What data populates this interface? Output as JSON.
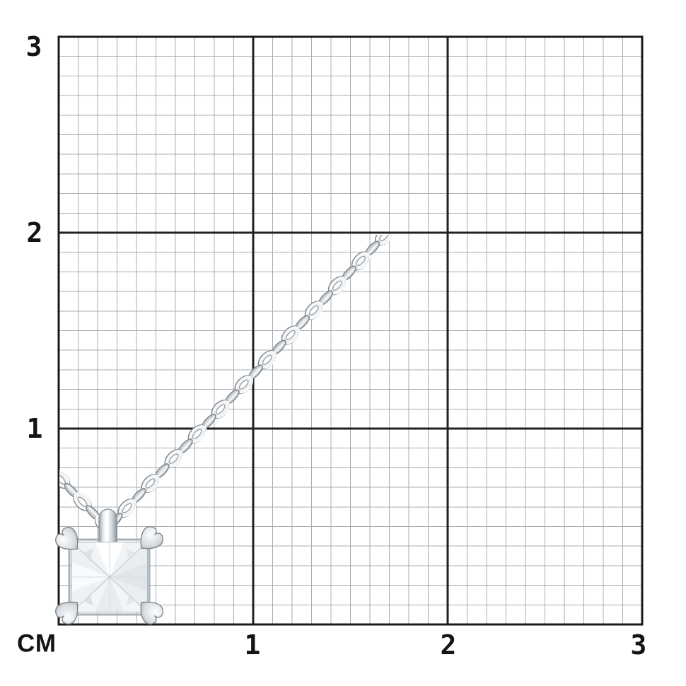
{
  "scene": {
    "type": "product-photo-on-measurement-grid",
    "background_color": "#ffffff",
    "subject": "Princess-cut stone solitaire pendant with four heart-shaped prongs on a diamond-cut cable chain, white metal"
  },
  "ruler": {
    "unit_label": "СМ",
    "x_ticks": [
      "1",
      "2",
      "3"
    ],
    "y_ticks": [
      "3",
      "2",
      "1"
    ],
    "cm_count": 3,
    "minor_per_cm": 10
  },
  "colors": {
    "grid_minor": "#a7acb1",
    "grid_major": "#212121",
    "grid_border": "#1a1a1a",
    "label_text": "#141414",
    "metal_light": "#f2f4f5",
    "metal_mid": "#c7ccd1",
    "metal_dark": "#8d959d",
    "stone_line": "#c9d0d6"
  }
}
